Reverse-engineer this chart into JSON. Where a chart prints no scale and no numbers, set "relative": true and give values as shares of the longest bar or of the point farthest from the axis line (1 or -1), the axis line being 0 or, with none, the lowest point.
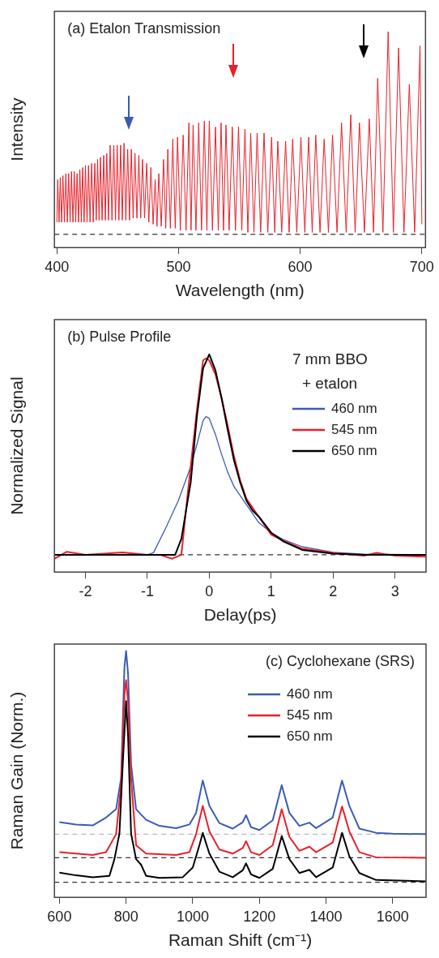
{
  "chart_data": [
    {
      "type": "line",
      "title": "(a) Etalon Transmission",
      "xlabel": "Wavelength (nm)",
      "ylabel": "Intensity",
      "relative": true,
      "color": "#e8202a",
      "marker": "none",
      "grid": false,
      "legend": false,
      "xlim": [
        398,
        703
      ],
      "xticks": [
        400,
        500,
        600,
        700
      ],
      "x": [
        400,
        400.7,
        401.8,
        402.8,
        403.9,
        405,
        406.2,
        407.4,
        408.6,
        409.7,
        410.9,
        412,
        413.2,
        414.3,
        415.5,
        416.6,
        417.8,
        418.9,
        420.1,
        421.2,
        422.4,
        423.5,
        424.8,
        426,
        427.3,
        428.6,
        429.9,
        431.2,
        432.4,
        433.5,
        434.7,
        435.8,
        437.2,
        438.5,
        439.8,
        441,
        442.4,
        443.8,
        445.3,
        446.8,
        448.2,
        449.6,
        451,
        452.4,
        453.8,
        455.2,
        456.7,
        458.2,
        459.7,
        461.2,
        462.7,
        464.2,
        465.8,
        467.4,
        468.9,
        470.4,
        472.1,
        473.8,
        475.6,
        477.3,
        479.1,
        480.8,
        482.3,
        483.8,
        485.8,
        487.7,
        489.5,
        491.2,
        493.3,
        495.3,
        497.3,
        499.2,
        501.5,
        503.8,
        506.2,
        508.5,
        510.3,
        512,
        514.3,
        516.6,
        518.9,
        521.2,
        523.3,
        525.3,
        527.9,
        530.4,
        532.7,
        535,
        537,
        539,
        541.6,
        544.2,
        546.8,
        549.3,
        552,
        554.6,
        557,
        559.3,
        562,
        564.6,
        567.5,
        570.3,
        573.4,
        576.5,
        579.1,
        581.6,
        584.8,
        588,
        590.9,
        593.8,
        597.2,
        600.6,
        603.8,
        607,
        609.9,
        612.8,
        616.3,
        619.7,
        623.2,
        626.6,
        630.3,
        634,
        637.8,
        641.6,
        645.2,
        648.7,
        652.8,
        656.8,
        660.3,
        663.7,
        668,
        672.3,
        676.6,
        680.9,
        685.3,
        689.7,
        694.1,
        698.5,
        700
      ],
      "values": [
        0.06,
        0.27,
        0.06,
        0.28,
        0.06,
        0.29,
        0.06,
        0.3,
        0.06,
        0.3,
        0.06,
        0.31,
        0.06,
        0.31,
        0.06,
        0.3,
        0.06,
        0.32,
        0.06,
        0.33,
        0.06,
        0.34,
        0.06,
        0.34,
        0.06,
        0.35,
        0.06,
        0.35,
        0.07,
        0.37,
        0.07,
        0.38,
        0.07,
        0.39,
        0.07,
        0.4,
        0.07,
        0.44,
        0.07,
        0.44,
        0.07,
        0.44,
        0.07,
        0.44,
        0.07,
        0.45,
        0.07,
        0.42,
        0.07,
        0.42,
        0.08,
        0.4,
        0.08,
        0.39,
        0.08,
        0.37,
        0.08,
        0.35,
        0.06,
        0.33,
        0.05,
        0.27,
        0.04,
        0.3,
        0.04,
        0.37,
        0.03,
        0.42,
        0.03,
        0.47,
        0.03,
        0.48,
        0.02,
        0.49,
        0.02,
        0.55,
        0.02,
        0.54,
        0.02,
        0.55,
        0.02,
        0.56,
        0.02,
        0.56,
        0.02,
        0.53,
        0.02,
        0.55,
        0.02,
        0.54,
        0.02,
        0.53,
        0.02,
        0.53,
        0.02,
        0.52,
        0.01,
        0.5,
        0.01,
        0.5,
        0.01,
        0.5,
        0.01,
        0.48,
        0.01,
        0.46,
        0.01,
        0.46,
        0.01,
        0.47,
        0.01,
        0.48,
        0.01,
        0.48,
        0.01,
        0.49,
        0.01,
        0.47,
        0.01,
        0.49,
        0.01,
        0.55,
        0.01,
        0.59,
        0.01,
        0.55,
        0.01,
        0.57,
        0.01,
        0.77,
        0.01,
        1,
        0.01,
        0.92,
        0.01,
        0.74,
        0.01,
        0.93,
        0.05
      ],
      "ref_lines": [
        {
          "axis": "y",
          "value": 0,
          "line_style": "dashed",
          "color": "#333333"
        }
      ]
    },
    {
      "type": "line",
      "title": "(b) Pulse Profile",
      "xlabel": "Delay(ps)",
      "ylabel": "Normalized Signal",
      "relative": true,
      "marker": "none",
      "grid": false,
      "legend": "top right",
      "legend_title": "7 mm BBO + etalon",
      "xlim": [
        -2.5,
        3.5
      ],
      "xticks": [
        -2,
        -1,
        0,
        1,
        2,
        3
      ],
      "series": [
        {
          "name": "460 nm",
          "color": "#3b5bb5",
          "x": [
            -2.5,
            -1,
            -0.9,
            -0.7,
            -0.5,
            -0.3,
            -0.2,
            -0.1,
            -0.05,
            0,
            0.1,
            0.2,
            0.3,
            0.4,
            0.6,
            0.8,
            1,
            1.2,
            1.5,
            2,
            2.5,
            3.5
          ],
          "values": [
            0,
            0,
            0.01,
            0.135,
            0.27,
            0.44,
            0.55,
            0.67,
            0.69,
            0.68,
            0.6,
            0.5,
            0.41,
            0.34,
            0.25,
            0.16,
            0.11,
            0.075,
            0.04,
            0.012,
            0.003,
            0
          ]
        },
        {
          "name": "545 nm",
          "color": "#e8202a",
          "x": [
            -2.5,
            -2.3,
            -2,
            -1.4,
            -1,
            -0.8,
            -0.6,
            -0.45,
            -0.35,
            -0.2,
            -0.1,
            -0.05,
            0,
            0.1,
            0.2,
            0.3,
            0.4,
            0.5,
            0.6,
            0.8,
            1,
            1.2,
            1.5,
            2,
            2.5,
            2.7,
            3,
            3.5
          ],
          "values": [
            -0.02,
            0.015,
            0,
            0.012,
            0,
            0,
            -0.02,
            0,
            0.3,
            0.72,
            0.97,
            0.98,
            0.97,
            0.9,
            0.78,
            0.64,
            0.49,
            0.37,
            0.28,
            0.19,
            0.1,
            0.07,
            0.03,
            0.01,
            -0.005,
            0.01,
            -0.005,
            -0.01
          ]
        },
        {
          "name": "650 nm",
          "color": "#000000",
          "x": [
            -2.5,
            -1,
            -0.6,
            -0.55,
            -0.45,
            -0.3,
            -0.2,
            -0.1,
            0,
            0.1,
            0.2,
            0.3,
            0.4,
            0.5,
            0.6,
            0.7,
            0.8,
            1,
            1.2,
            1.5,
            2,
            2.5,
            3.5
          ],
          "values": [
            0,
            0,
            0,
            0,
            0.08,
            0.36,
            0.69,
            0.93,
            1,
            0.92,
            0.78,
            0.62,
            0.47,
            0.36,
            0.27,
            0.22,
            0.19,
            0.11,
            0.066,
            0.024,
            0.006,
            0,
            0
          ]
        }
      ],
      "ref_lines": [
        {
          "axis": "y",
          "value": 0,
          "line_style": "dashed",
          "color": "#333333"
        }
      ]
    },
    {
      "type": "line",
      "title": "(c) Cyclohexane (SRS)",
      "xlabel": "Raman Shift (cm⁻¹)",
      "ylabel": "Raman Gain (Norm.)",
      "relative": true,
      "marker": "none",
      "grid": false,
      "legend": "top right",
      "xlim": [
        585,
        1700
      ],
      "xticks": [
        600,
        800,
        1000,
        1200,
        1400,
        1600
      ],
      "series": [
        {
          "name": "460 nm",
          "color": "#3b5bb5",
          "x": [
            600,
            650,
            700,
            740,
            770,
            785,
            795,
            800,
            806,
            815,
            830,
            860,
            900,
            950,
            990,
            1010,
            1030,
            1050,
            1080,
            1120,
            1150,
            1160,
            1175,
            1200,
            1240,
            1267,
            1290,
            1320,
            1350,
            1370,
            1420,
            1448,
            1470,
            1500,
            1550,
            1600,
            1700
          ],
          "values": [
            0.26,
            0.25,
            0.246,
            0.28,
            0.316,
            0.45,
            0.93,
            1,
            0.9,
            0.51,
            0.316,
            0.27,
            0.244,
            0.234,
            0.25,
            0.3,
            0.44,
            0.33,
            0.256,
            0.232,
            0.26,
            0.29,
            0.238,
            0.226,
            0.268,
            0.42,
            0.3,
            0.244,
            0.258,
            0.234,
            0.28,
            0.44,
            0.33,
            0.232,
            0.214,
            0.21,
            0.208
          ]
        },
        {
          "name": "545 nm",
          "color": "#e8202a",
          "x": [
            600,
            700,
            740,
            770,
            785,
            795,
            800,
            806,
            815,
            830,
            860,
            950,
            990,
            1010,
            1030,
            1050,
            1080,
            1120,
            1150,
            1160,
            1175,
            1200,
            1240,
            1267,
            1290,
            1320,
            1350,
            1370,
            1420,
            1448,
            1470,
            1500,
            1550,
            1700
          ],
          "values": [
            0.13,
            0.118,
            0.13,
            0.208,
            0.42,
            0.81,
            0.874,
            0.78,
            0.45,
            0.16,
            0.124,
            0.118,
            0.13,
            0.208,
            0.33,
            0.22,
            0.142,
            0.124,
            0.148,
            0.178,
            0.13,
            0.118,
            0.16,
            0.316,
            0.196,
            0.136,
            0.154,
            0.13,
            0.172,
            0.328,
            0.22,
            0.13,
            0.108,
            0.106
          ]
        },
        {
          "name": "650 nm",
          "color": "#000000",
          "x": [
            600,
            650,
            700,
            750,
            765,
            780,
            790,
            800,
            806,
            815,
            830,
            845,
            860,
            900,
            970,
            1000,
            1020,
            1030,
            1050,
            1080,
            1120,
            1150,
            1160,
            1175,
            1200,
            1240,
            1267,
            1290,
            1320,
            1350,
            1370,
            1420,
            1448,
            1470,
            1500,
            1550,
            1700
          ],
          "values": [
            0.042,
            0.03,
            0.022,
            0.028,
            0.1,
            0.21,
            0.51,
            0.784,
            0.63,
            0.21,
            0.1,
            0.076,
            0.028,
            0.019,
            0.022,
            0.064,
            0.16,
            0.214,
            0.124,
            0.046,
            0.022,
            0.052,
            0.082,
            0.034,
            0.019,
            0.058,
            0.2,
            0.1,
            0.04,
            0.054,
            0.022,
            0.064,
            0.214,
            0.112,
            0.04,
            0.01,
            0.004
          ]
        }
      ],
      "ref_lines": [
        {
          "axis": "y",
          "value": 0,
          "line_style": "dashed",
          "color": "#333333"
        },
        {
          "axis": "y",
          "value": 0.106,
          "line_style": "dashed",
          "color": "#333333"
        },
        {
          "axis": "y",
          "value": 0.208,
          "line_style": "dashed",
          "color": "#bbbbbb"
        }
      ]
    }
  ]
}
